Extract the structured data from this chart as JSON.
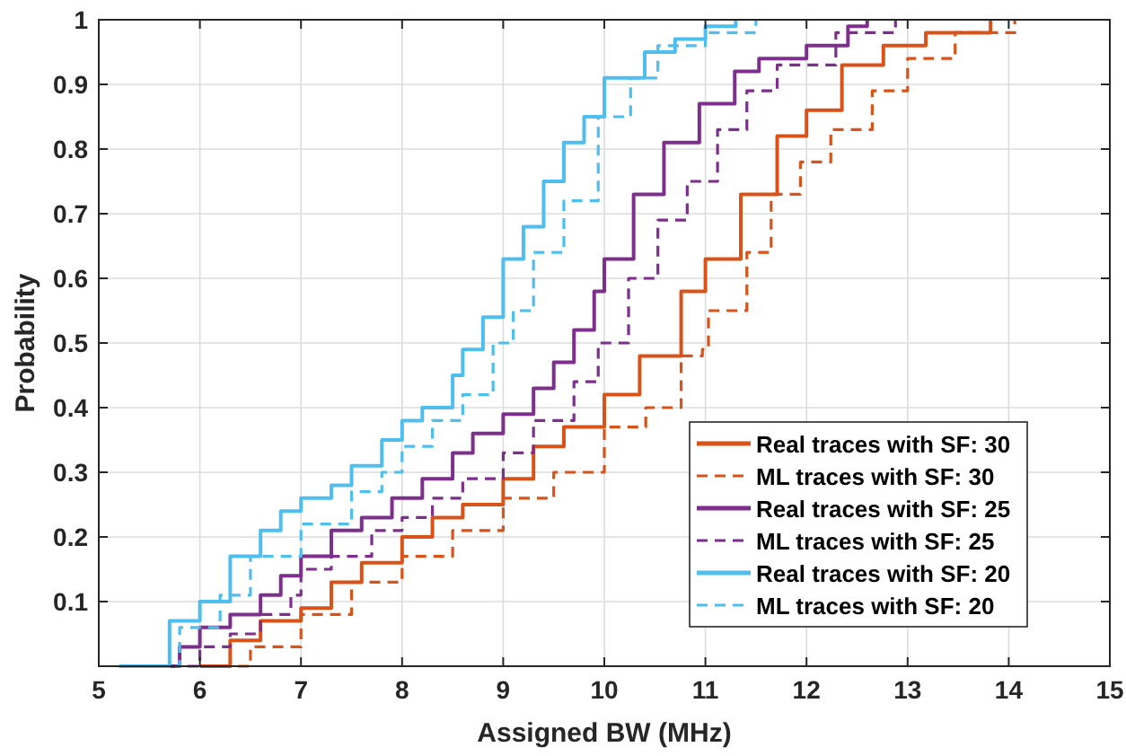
{
  "chart_data": {
    "type": "step",
    "xlabel": "Assigned BW (MHz)",
    "ylabel": "Probability",
    "xlim": [
      5,
      15
    ],
    "xticks": [
      5,
      6,
      7,
      8,
      9,
      10,
      11,
      12,
      13,
      14,
      15
    ],
    "ylim": [
      0,
      1
    ],
    "yticks": [
      {
        "value": 0,
        "label": null
      },
      0.1,
      0.2,
      0.3,
      0.4,
      0.5,
      0.6,
      0.7,
      0.8,
      0.9,
      1
    ],
    "grid": true,
    "legend": "bottom right",
    "series": [
      {
        "name": "Real traces with SF: 30",
        "color": "#d95319",
        "line_style": "solid",
        "x": [
          6.0,
          6.3,
          6.6,
          7.0,
          7.3,
          7.6,
          8.0,
          8.3,
          8.6,
          9.0,
          9.3,
          9.6,
          10.0,
          10.35,
          10.76,
          11.0,
          11.35,
          11.71,
          12.0,
          12.35,
          12.76,
          13.18,
          13.82
        ],
        "values": [
          0,
          0.04,
          0.07,
          0.09,
          0.13,
          0.16,
          0.2,
          0.23,
          0.25,
          0.29,
          0.34,
          0.37,
          0.42,
          0.48,
          0.58,
          0.63,
          0.73,
          0.82,
          0.86,
          0.93,
          0.96,
          0.98,
          1
        ]
      },
      {
        "name": "ML traces with SF: 30",
        "color": "#d95319",
        "line_style": "dashed",
        "x": [
          6.2,
          6.5,
          7.0,
          7.5,
          8.0,
          8.5,
          9.0,
          9.5,
          10.0,
          10.41,
          10.76,
          10.97,
          11.03,
          11.41,
          11.65,
          11.94,
          12.24,
          12.65,
          13.0,
          13.47,
          14.06
        ],
        "values": [
          0,
          0.03,
          0.08,
          0.13,
          0.17,
          0.21,
          0.26,
          0.3,
          0.37,
          0.4,
          0.48,
          0.49,
          0.55,
          0.64,
          0.73,
          0.78,
          0.83,
          0.89,
          0.94,
          0.98,
          1
        ]
      },
      {
        "name": "Real traces with SF: 25",
        "color": "#7e2f8e",
        "line_style": "solid",
        "x": [
          5.5,
          5.8,
          6.0,
          6.3,
          6.6,
          6.8,
          7.0,
          7.3,
          7.6,
          7.9,
          8.2,
          8.5,
          8.7,
          9.0,
          9.3,
          9.5,
          9.7,
          9.9,
          10.0,
          10.29,
          10.59,
          10.94,
          11.29,
          11.53,
          12.0,
          12.41,
          12.6
        ],
        "values": [
          0,
          0.03,
          0.06,
          0.08,
          0.11,
          0.14,
          0.17,
          0.21,
          0.23,
          0.26,
          0.29,
          0.33,
          0.36,
          0.39,
          0.43,
          0.47,
          0.52,
          0.58,
          0.63,
          0.73,
          0.81,
          0.87,
          0.92,
          0.94,
          0.96,
          0.99,
          1
        ]
      },
      {
        "name": "ML traces with SF: 25",
        "color": "#7e2f8e",
        "line_style": "dashed",
        "x": [
          5.7,
          6.0,
          6.3,
          6.6,
          6.9,
          7.0,
          7.3,
          7.7,
          8.0,
          8.3,
          8.6,
          9.0,
          9.3,
          9.7,
          9.94,
          10.24,
          10.53,
          10.82,
          11.12,
          11.41,
          11.71,
          12.29,
          12.88
        ],
        "values": [
          0,
          0.03,
          0.05,
          0.08,
          0.11,
          0.15,
          0.17,
          0.21,
          0.23,
          0.26,
          0.29,
          0.33,
          0.38,
          0.44,
          0.5,
          0.6,
          0.69,
          0.75,
          0.83,
          0.89,
          0.93,
          0.98,
          1
        ]
      },
      {
        "name": "Real traces with SF: 20",
        "color": "#4dbeee",
        "line_style": "solid",
        "x": [
          5.2,
          5.7,
          6.0,
          6.3,
          6.6,
          6.8,
          7.0,
          7.3,
          7.5,
          7.8,
          8.0,
          8.2,
          8.5,
          8.6,
          8.8,
          9.0,
          9.2,
          9.4,
          9.6,
          9.8,
          10.0,
          10.4,
          10.7,
          11.0,
          11.3
        ],
        "values": [
          0,
          0.07,
          0.1,
          0.17,
          0.21,
          0.24,
          0.26,
          0.28,
          0.31,
          0.35,
          0.38,
          0.4,
          0.45,
          0.49,
          0.54,
          0.63,
          0.68,
          0.75,
          0.81,
          0.85,
          0.91,
          0.95,
          0.97,
          0.99,
          1
        ]
      },
      {
        "name": "ML traces with SF: 20",
        "color": "#4dbeee",
        "line_style": "dashed",
        "x": [
          5.4,
          5.8,
          6.2,
          6.5,
          7.0,
          7.5,
          7.8,
          8.0,
          8.3,
          8.6,
          8.9,
          9.1,
          9.3,
          9.6,
          9.94,
          10.26,
          10.53,
          11.0,
          11.5
        ],
        "values": [
          0,
          0.06,
          0.11,
          0.17,
          0.22,
          0.27,
          0.3,
          0.34,
          0.38,
          0.42,
          0.5,
          0.55,
          0.64,
          0.72,
          0.85,
          0.91,
          0.96,
          0.98,
          1
        ]
      }
    ]
  }
}
